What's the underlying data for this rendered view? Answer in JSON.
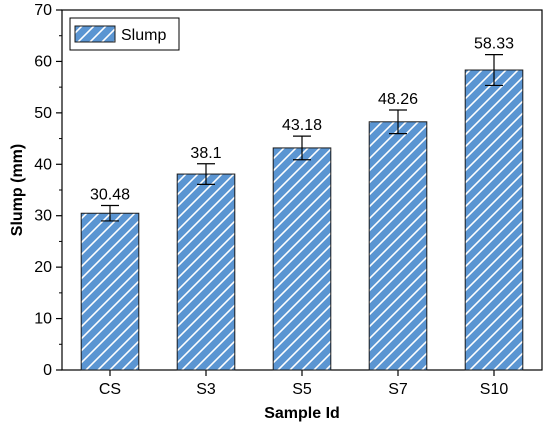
{
  "chart_data": {
    "type": "bar",
    "title": "",
    "xlabel": "Sample Id",
    "ylabel": "Slump (mm)",
    "ylim": [
      0,
      70
    ],
    "yticks": [
      0,
      10,
      20,
      30,
      40,
      50,
      60,
      70
    ],
    "categories": [
      "CS",
      "S3",
      "S5",
      "S7",
      "S10"
    ],
    "series": [
      {
        "name": "Slump",
        "values": [
          30.48,
          38.1,
          43.18,
          48.26,
          58.33
        ],
        "errors": [
          1.5,
          2.0,
          2.3,
          2.3,
          3.0
        ],
        "data_labels": [
          "30.48",
          "38.1",
          "43.18",
          "48.26",
          "58.33"
        ]
      }
    ],
    "bar_fill": "#5b95d2",
    "bar_hatch_color": "#ffffff",
    "bar_edge": "#1a1a1a",
    "legend": {
      "position": "top-left"
    },
    "grid": false
  }
}
